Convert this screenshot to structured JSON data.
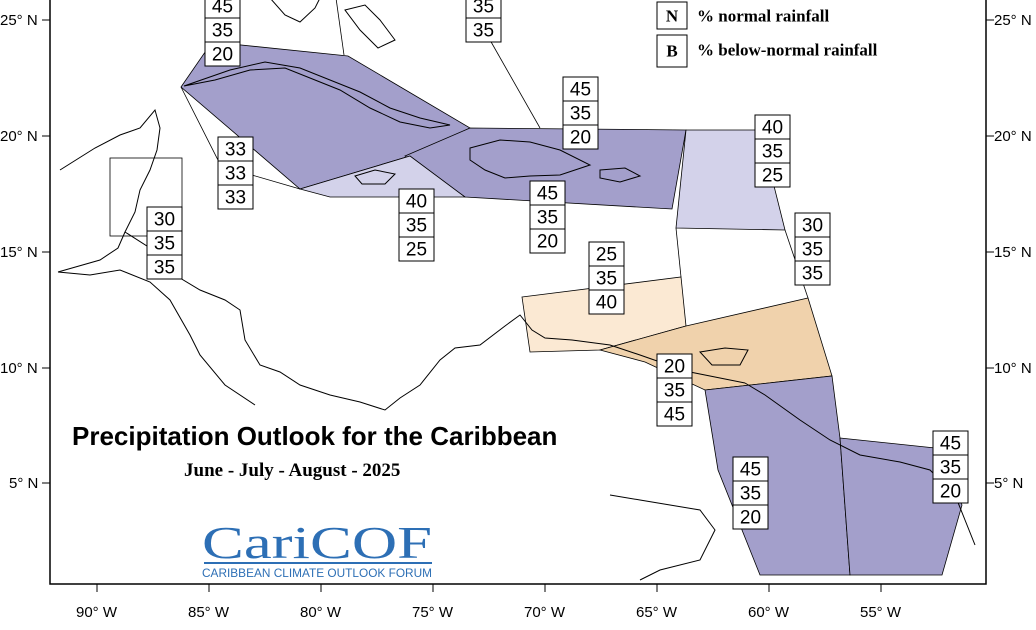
{
  "map": {
    "title": "Precipitation Outlook for the Caribbean",
    "subtitle": "June - July - August - 2025",
    "legend": [
      {
        "letter": "N",
        "description": "% normal rainfall"
      },
      {
        "letter": "B",
        "description": "% below-normal rainfall"
      }
    ],
    "lat_labels": [
      "25° N",
      "20° N",
      "15° N",
      "10° N",
      "5° N"
    ],
    "lon_labels": [
      "90° W",
      "85° W",
      "80° W",
      "75° W",
      "70° W",
      "65° W",
      "60° W",
      "55° W"
    ],
    "logo": {
      "name": "CariCOF",
      "tagline": "CARIBBEAN CLIMATE OUTLOOK FORUM"
    },
    "colors": {
      "below_normal_dark": "#a39fcb",
      "below_normal_light": "#d3d2ea",
      "above_normal_light": "#fbe9d3",
      "above_normal_medium": "#f0d2ac"
    },
    "regions": [
      {
        "id": "bahamas-north",
        "values": [
          "45",
          "35",
          "20"
        ]
      },
      {
        "id": "turks-caicos",
        "values": [
          "35",
          "35"
        ]
      },
      {
        "id": "hispaniola-puerto-rico",
        "values": [
          "45",
          "35",
          "20"
        ]
      },
      {
        "id": "leeward-islands",
        "values": [
          "40",
          "35",
          "25"
        ]
      },
      {
        "id": "cayman-islands",
        "values": [
          "33",
          "33",
          "33"
        ]
      },
      {
        "id": "belize",
        "values": [
          "30",
          "35",
          "35"
        ]
      },
      {
        "id": "jamaica",
        "values": [
          "40",
          "35",
          "25"
        ]
      },
      {
        "id": "caribbean-sea-central",
        "values": [
          "45",
          "35",
          "20"
        ]
      },
      {
        "id": "windward-islands",
        "values": [
          "30",
          "35",
          "35"
        ]
      },
      {
        "id": "abc-islands",
        "values": [
          "25",
          "35",
          "40"
        ]
      },
      {
        "id": "trinidad-tobago",
        "values": [
          "20",
          "35",
          "45"
        ]
      },
      {
        "id": "guyana",
        "values": [
          "45",
          "35",
          "20"
        ]
      },
      {
        "id": "suriname-french-guiana",
        "values": [
          "45",
          "35",
          "20"
        ]
      }
    ]
  }
}
